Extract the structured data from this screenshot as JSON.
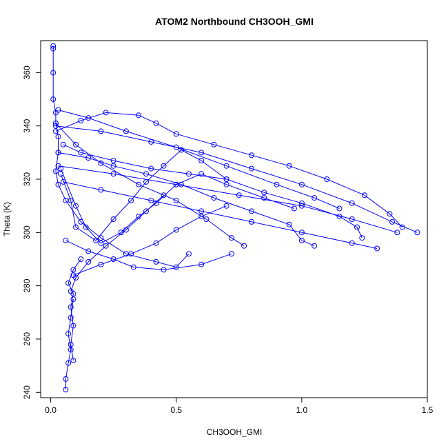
{
  "chart_data": {
    "type": "line",
    "title": "ATOM2 Northbound CH3OOH_GMI",
    "xlabel": "CH3OOH_GMI",
    "ylabel": "Theta (K)",
    "xlim": [
      -0.04,
      1.5
    ],
    "ylim": [
      238,
      372
    ],
    "xticks": [
      "0.0",
      "0.5",
      "1.0",
      "1.5"
    ],
    "xtick_values": [
      0.0,
      0.5,
      1.0,
      1.5
    ],
    "yticks": [
      "240",
      "260",
      "280",
      "300",
      "320",
      "340",
      "360"
    ],
    "ytick_values": [
      240,
      260,
      280,
      300,
      320,
      340,
      360
    ],
    "grid": false,
    "legend": "none",
    "color": "#0000ff",
    "marker": "open-circle",
    "series": [
      {
        "values": [
          [
            0.01,
            370
          ],
          [
            0.01,
            369
          ],
          [
            0.01,
            360
          ],
          [
            0.01,
            350
          ],
          [
            0.02,
            345
          ],
          [
            0.02,
            341
          ],
          [
            0.03,
            336
          ],
          [
            0.03,
            330
          ],
          [
            0.02,
            323
          ],
          [
            0.03,
            318
          ],
          [
            0.06,
            312
          ],
          [
            0.12,
            304
          ],
          [
            0.2,
            298
          ],
          [
            0.3,
            292
          ],
          [
            0.42,
            289
          ],
          [
            0.5,
            287
          ],
          [
            0.55,
            292
          ]
        ]
      },
      {
        "values": [
          [
            0.02,
            340
          ],
          [
            0.2,
            338
          ],
          [
            0.4,
            334
          ],
          [
            0.6,
            330
          ],
          [
            0.8,
            324
          ],
          [
            1.0,
            318
          ],
          [
            1.2,
            311
          ],
          [
            1.36,
            304
          ],
          [
            1.46,
            300
          ]
        ]
      },
      {
        "values": [
          [
            0.03,
            325
          ],
          [
            0.25,
            322
          ],
          [
            0.5,
            318
          ],
          [
            0.75,
            314
          ],
          [
            1.0,
            310
          ],
          [
            1.2,
            305
          ],
          [
            1.38,
            300
          ]
        ]
      },
      {
        "values": [
          [
            0.05,
            319
          ],
          [
            0.2,
            316
          ],
          [
            0.4,
            312
          ],
          [
            0.6,
            308
          ],
          [
            0.8,
            304
          ],
          [
            1.0,
            300
          ],
          [
            1.2,
            296
          ],
          [
            1.3,
            294
          ]
        ]
      },
      {
        "values": [
          [
            0.03,
            346
          ],
          [
            0.15,
            343
          ],
          [
            0.3,
            338
          ],
          [
            0.5,
            332
          ],
          [
            0.7,
            325
          ],
          [
            0.9,
            318
          ],
          [
            1.05,
            313
          ],
          [
            1.15,
            309
          ]
        ]
      },
      {
        "values": [
          [
            0.02,
            341
          ],
          [
            0.1,
            333
          ],
          [
            0.2,
            326
          ],
          [
            0.35,
            318
          ],
          [
            0.5,
            312
          ],
          [
            0.62,
            305
          ],
          [
            0.72,
            298
          ],
          [
            0.77,
            295
          ]
        ]
      },
      {
        "values": [
          [
            0.06,
            297
          ],
          [
            0.15,
            293
          ],
          [
            0.25,
            290
          ],
          [
            0.33,
            287
          ],
          [
            0.45,
            286
          ],
          [
            0.6,
            288
          ],
          [
            0.72,
            292
          ]
        ]
      },
      {
        "values": [
          [
            0.09,
            284
          ],
          [
            0.2,
            288
          ],
          [
            0.32,
            292
          ],
          [
            0.42,
            296
          ],
          [
            0.5,
            301
          ],
          [
            0.6,
            306
          ],
          [
            0.7,
            310
          ]
        ]
      },
      {
        "values": [
          [
            0.08,
            278
          ],
          [
            0.1,
            283
          ],
          [
            0.15,
            289
          ],
          [
            0.22,
            295
          ],
          [
            0.3,
            301
          ],
          [
            0.38,
            308
          ],
          [
            0.45,
            314
          ]
        ]
      },
      {
        "values": [
          [
            0.09,
            252
          ],
          [
            0.08,
            258
          ],
          [
            0.09,
            265
          ],
          [
            0.08,
            272
          ],
          [
            0.09,
            277
          ],
          [
            0.07,
            281
          ],
          [
            0.09,
            286
          ],
          [
            0.12,
            290
          ]
        ]
      },
      {
        "values": [
          [
            0.06,
            241
          ],
          [
            0.06,
            245
          ],
          [
            0.07,
            251
          ],
          [
            0.08,
            256
          ],
          [
            0.07,
            262
          ],
          [
            0.08,
            268
          ],
          [
            0.09,
            275
          ]
        ]
      },
      {
        "values": [
          [
            0.04,
            324
          ],
          [
            0.1,
            310
          ],
          [
            0.14,
            302
          ],
          [
            0.2,
            296
          ],
          [
            0.28,
            300
          ],
          [
            0.35,
            306
          ],
          [
            0.42,
            311
          ],
          [
            0.5,
            318
          ],
          [
            0.6,
            322
          ],
          [
            0.7,
            318
          ],
          [
            0.85,
            313
          ],
          [
            0.97,
            309
          ]
        ]
      },
      {
        "values": [
          [
            0.02,
            338
          ],
          [
            0.12,
            342
          ],
          [
            0.22,
            345
          ],
          [
            0.35,
            344
          ],
          [
            0.42,
            341
          ],
          [
            0.5,
            337
          ],
          [
            0.65,
            333
          ],
          [
            0.8,
            329
          ],
          [
            0.95,
            325
          ],
          [
            1.1,
            320
          ],
          [
            1.25,
            314
          ],
          [
            1.35,
            307
          ],
          [
            1.4,
            302
          ]
        ]
      },
      {
        "values": [
          [
            0.04,
            322
          ],
          [
            0.08,
            312
          ],
          [
            0.1,
            302
          ],
          [
            0.18,
            297
          ],
          [
            0.25,
            305
          ],
          [
            0.32,
            312
          ],
          [
            0.38,
            319
          ],
          [
            0.45,
            325
          ],
          [
            0.52,
            331
          ],
          [
            0.6,
            327
          ],
          [
            0.7,
            320
          ]
        ]
      },
      {
        "values": [
          [
            0.03,
            330
          ],
          [
            0.15,
            328
          ],
          [
            0.25,
            325
          ],
          [
            0.38,
            322
          ],
          [
            0.52,
            318
          ],
          [
            0.65,
            313
          ],
          [
            0.8,
            308
          ],
          [
            0.95,
            303
          ],
          [
            1.0,
            297
          ],
          [
            1.05,
            295
          ]
        ]
      },
      {
        "values": [
          [
            0.05,
            333
          ],
          [
            0.12,
            330
          ],
          [
            0.25,
            327
          ],
          [
            0.4,
            324
          ],
          [
            0.55,
            322
          ],
          [
            0.7,
            320
          ],
          [
            0.85,
            315
          ],
          [
            1.0,
            311
          ],
          [
            1.15,
            306
          ],
          [
            1.22,
            302
          ],
          [
            1.24,
            298
          ]
        ]
      }
    ]
  }
}
